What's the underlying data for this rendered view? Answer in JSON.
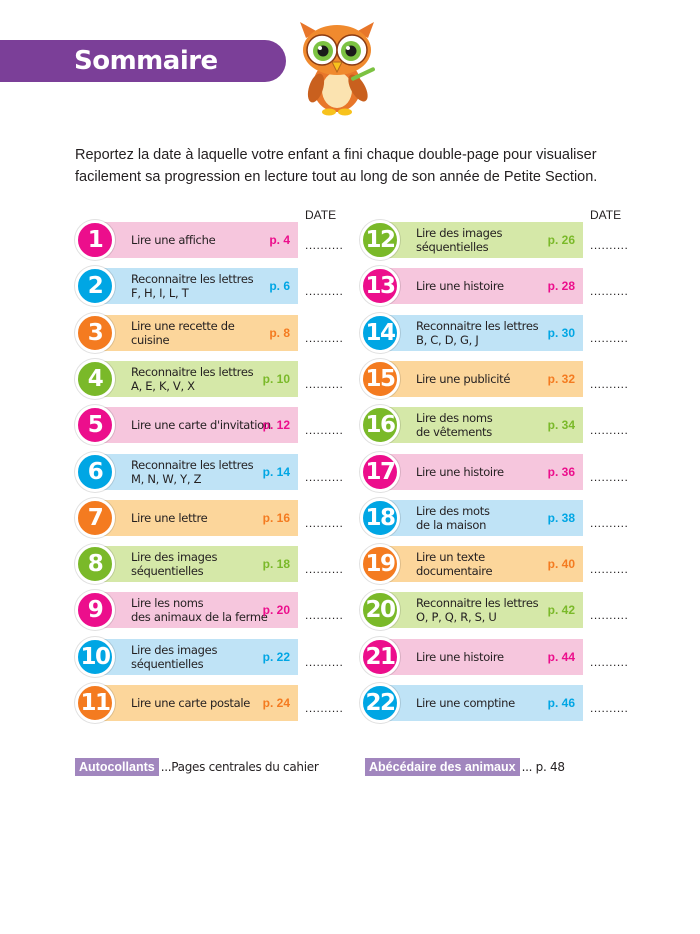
{
  "header": {
    "title": "Sommaire"
  },
  "intro": "Reportez la date à laquelle votre enfant a fini chaque double-page pour visualiser facilement sa progression en lecture tout au long de son année de Petite Section.",
  "date_label": "DATE",
  "date_placeholder": "..........",
  "colors": {
    "pink": "#ec0e8c",
    "blue": "#00a6e4",
    "orange": "#f47b20",
    "green": "#7ab929"
  },
  "entries": [
    {
      "num": "1",
      "lines": [
        "Lire une affiche"
      ],
      "page": "p. 4",
      "color": "pink"
    },
    {
      "num": "2",
      "lines": [
        "Reconnaitre les lettres",
        "F, H, I, L, T"
      ],
      "page": "p. 6",
      "color": "blue"
    },
    {
      "num": "3",
      "lines": [
        "Lire une recette de cuisine"
      ],
      "page": "p. 8",
      "color": "orange"
    },
    {
      "num": "4",
      "lines": [
        "Reconnaitre les lettres",
        "A, E, K, V, X"
      ],
      "page": "p. 10",
      "color": "green"
    },
    {
      "num": "5",
      "lines": [
        "Lire une carte d'invitation"
      ],
      "page": "p. 12",
      "color": "pink"
    },
    {
      "num": "6",
      "lines": [
        "Reconnaitre les lettres",
        "M, N, W, Y, Z"
      ],
      "page": "p. 14",
      "color": "blue"
    },
    {
      "num": "7",
      "lines": [
        "Lire une lettre"
      ],
      "page": "p. 16",
      "color": "orange"
    },
    {
      "num": "8",
      "lines": [
        "Lire des images",
        "séquentielles"
      ],
      "page": "p. 18",
      "color": "green"
    },
    {
      "num": "9",
      "lines": [
        "Lire les noms",
        "des animaux de la ferme"
      ],
      "page": "p. 20",
      "color": "pink"
    },
    {
      "num": "10",
      "lines": [
        "Lire des images",
        "séquentielles"
      ],
      "page": "p. 22",
      "color": "blue"
    },
    {
      "num": "11",
      "lines": [
        "Lire une carte postale"
      ],
      "page": "p. 24",
      "color": "orange"
    },
    {
      "num": "12",
      "lines": [
        "Lire des images",
        "séquentielles"
      ],
      "page": "p. 26",
      "color": "green"
    },
    {
      "num": "13",
      "lines": [
        "Lire une histoire"
      ],
      "page": "p. 28",
      "color": "pink"
    },
    {
      "num": "14",
      "lines": [
        "Reconnaitre les lettres",
        "B, C, D, G, J"
      ],
      "page": "p. 30",
      "color": "blue"
    },
    {
      "num": "15",
      "lines": [
        "Lire une publicité"
      ],
      "page": "p. 32",
      "color": "orange"
    },
    {
      "num": "16",
      "lines": [
        "Lire des noms",
        "de vêtements"
      ],
      "page": "p. 34",
      "color": "green"
    },
    {
      "num": "17",
      "lines": [
        "Lire une histoire"
      ],
      "page": "p. 36",
      "color": "pink"
    },
    {
      "num": "18",
      "lines": [
        "Lire des mots",
        "de la maison"
      ],
      "page": "p. 38",
      "color": "blue"
    },
    {
      "num": "19",
      "lines": [
        "Lire un texte",
        "documentaire"
      ],
      "page": "p. 40",
      "color": "orange"
    },
    {
      "num": "20",
      "lines": [
        "Reconnaitre les lettres",
        "O, P, Q, R, S, U"
      ],
      "page": "p. 42",
      "color": "green"
    },
    {
      "num": "21",
      "lines": [
        "Lire une histoire"
      ],
      "page": "p. 44",
      "color": "pink"
    },
    {
      "num": "22",
      "lines": [
        "Lire une comptine"
      ],
      "page": "p. 46",
      "color": "blue"
    }
  ],
  "footer": [
    {
      "tag": "Autocollants",
      "text": "...Pages centrales du cahier"
    },
    {
      "tag": "Abécédaire des animaux",
      "text": "... p. 48"
    }
  ]
}
